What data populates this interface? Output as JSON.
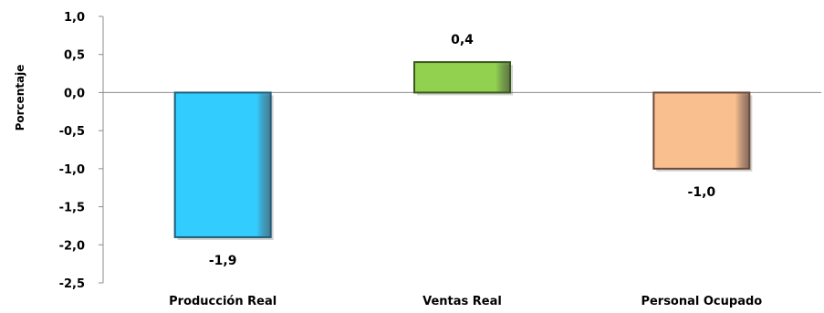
{
  "chart_data": {
    "type": "bar",
    "title": "",
    "xlabel": "",
    "ylabel": "Porcentaje",
    "categories": [
      "Producción Real",
      "Ventas Real",
      "Personal Ocupado"
    ],
    "values": [
      -1.9,
      0.4,
      -1.0
    ],
    "data_labels": [
      "-1,9",
      "0,4",
      "-1,0"
    ],
    "colors": [
      "#33CCFF",
      "#92D050",
      "#FABF8F"
    ],
    "border_colors": [
      "#1F5F7A",
      "#3A5A1C",
      "#6B4A3A"
    ],
    "ylim": [
      -2.5,
      1.0
    ],
    "yticks": [
      1.0,
      0.5,
      0.0,
      -0.5,
      -1.0,
      -1.5,
      -2.0,
      -2.5
    ],
    "ytick_labels": [
      "1,0",
      "0,5",
      "0,0",
      "-0,5",
      "-1,0",
      "-1,5",
      "-2,0",
      "-2,5"
    ],
    "grid": false,
    "legend": "none"
  }
}
